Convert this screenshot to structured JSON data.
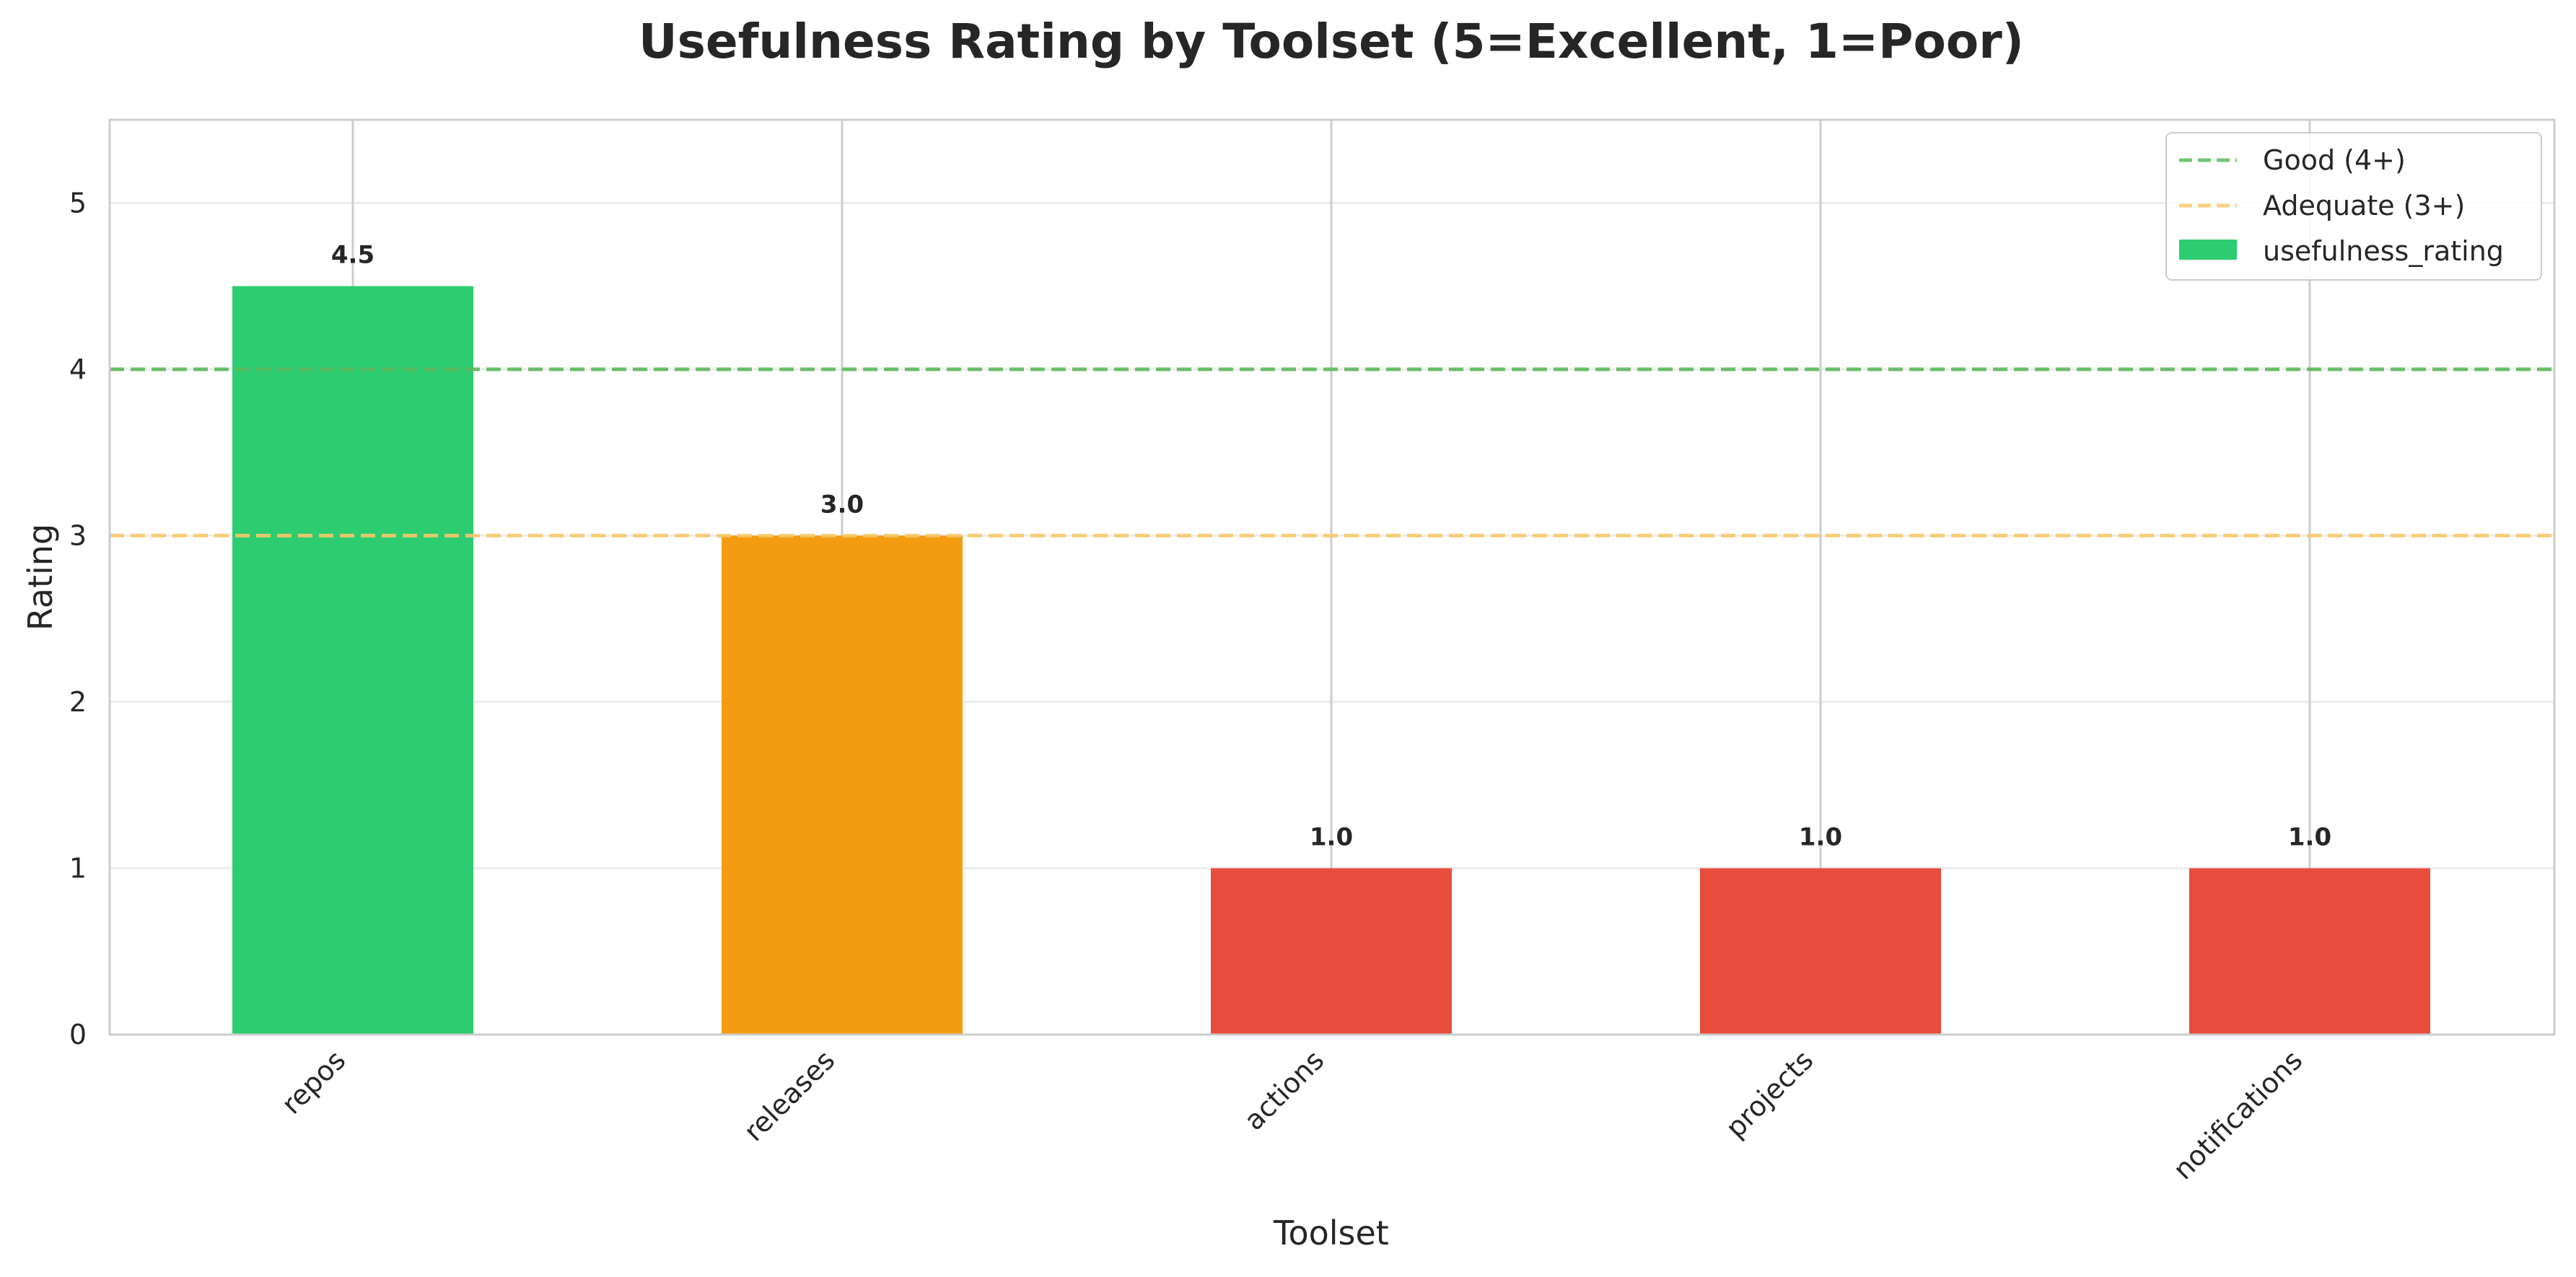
{
  "chart_data": {
    "type": "bar",
    "title": "Usefulness Rating by Toolset (5=Excellent, 1=Poor)",
    "xlabel": "Toolset",
    "ylabel": "Rating",
    "categories": [
      "repos",
      "releases",
      "actions",
      "projects",
      "notifications"
    ],
    "series": [
      {
        "name": "usefulness_rating",
        "values": [
          4.5,
          3.0,
          1.0,
          1.0,
          1.0
        ]
      }
    ],
    "data_labels": [
      "4.5",
      "3.0",
      "1.0",
      "1.0",
      "1.0"
    ],
    "bar_colors": [
      "#2ecc71",
      "#f39c12",
      "#e74c3c",
      "#e74c3c",
      "#e74c3c"
    ],
    "ylim": [
      0,
      5.5
    ],
    "yticks": [
      "0",
      "1",
      "2",
      "3",
      "4",
      "5"
    ],
    "reference_lines": [
      {
        "name": "Good (4+)",
        "value": 4,
        "color": "#5cb85c"
      },
      {
        "name": "Adequate (3+)",
        "value": 3,
        "color": "#f7c96a"
      }
    ],
    "grid": true,
    "legend_position": "top-right"
  }
}
